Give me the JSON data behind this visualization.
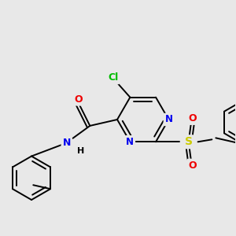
{
  "bg_color": "#e8e8e8",
  "bond_color": "#000000",
  "bond_width": 1.4,
  "atom_colors": {
    "C": "#000000",
    "N": "#0000ee",
    "O": "#ee0000",
    "S": "#cccc00",
    "Cl": "#00bb00",
    "H": "#000000"
  },
  "font_size": 8.5
}
